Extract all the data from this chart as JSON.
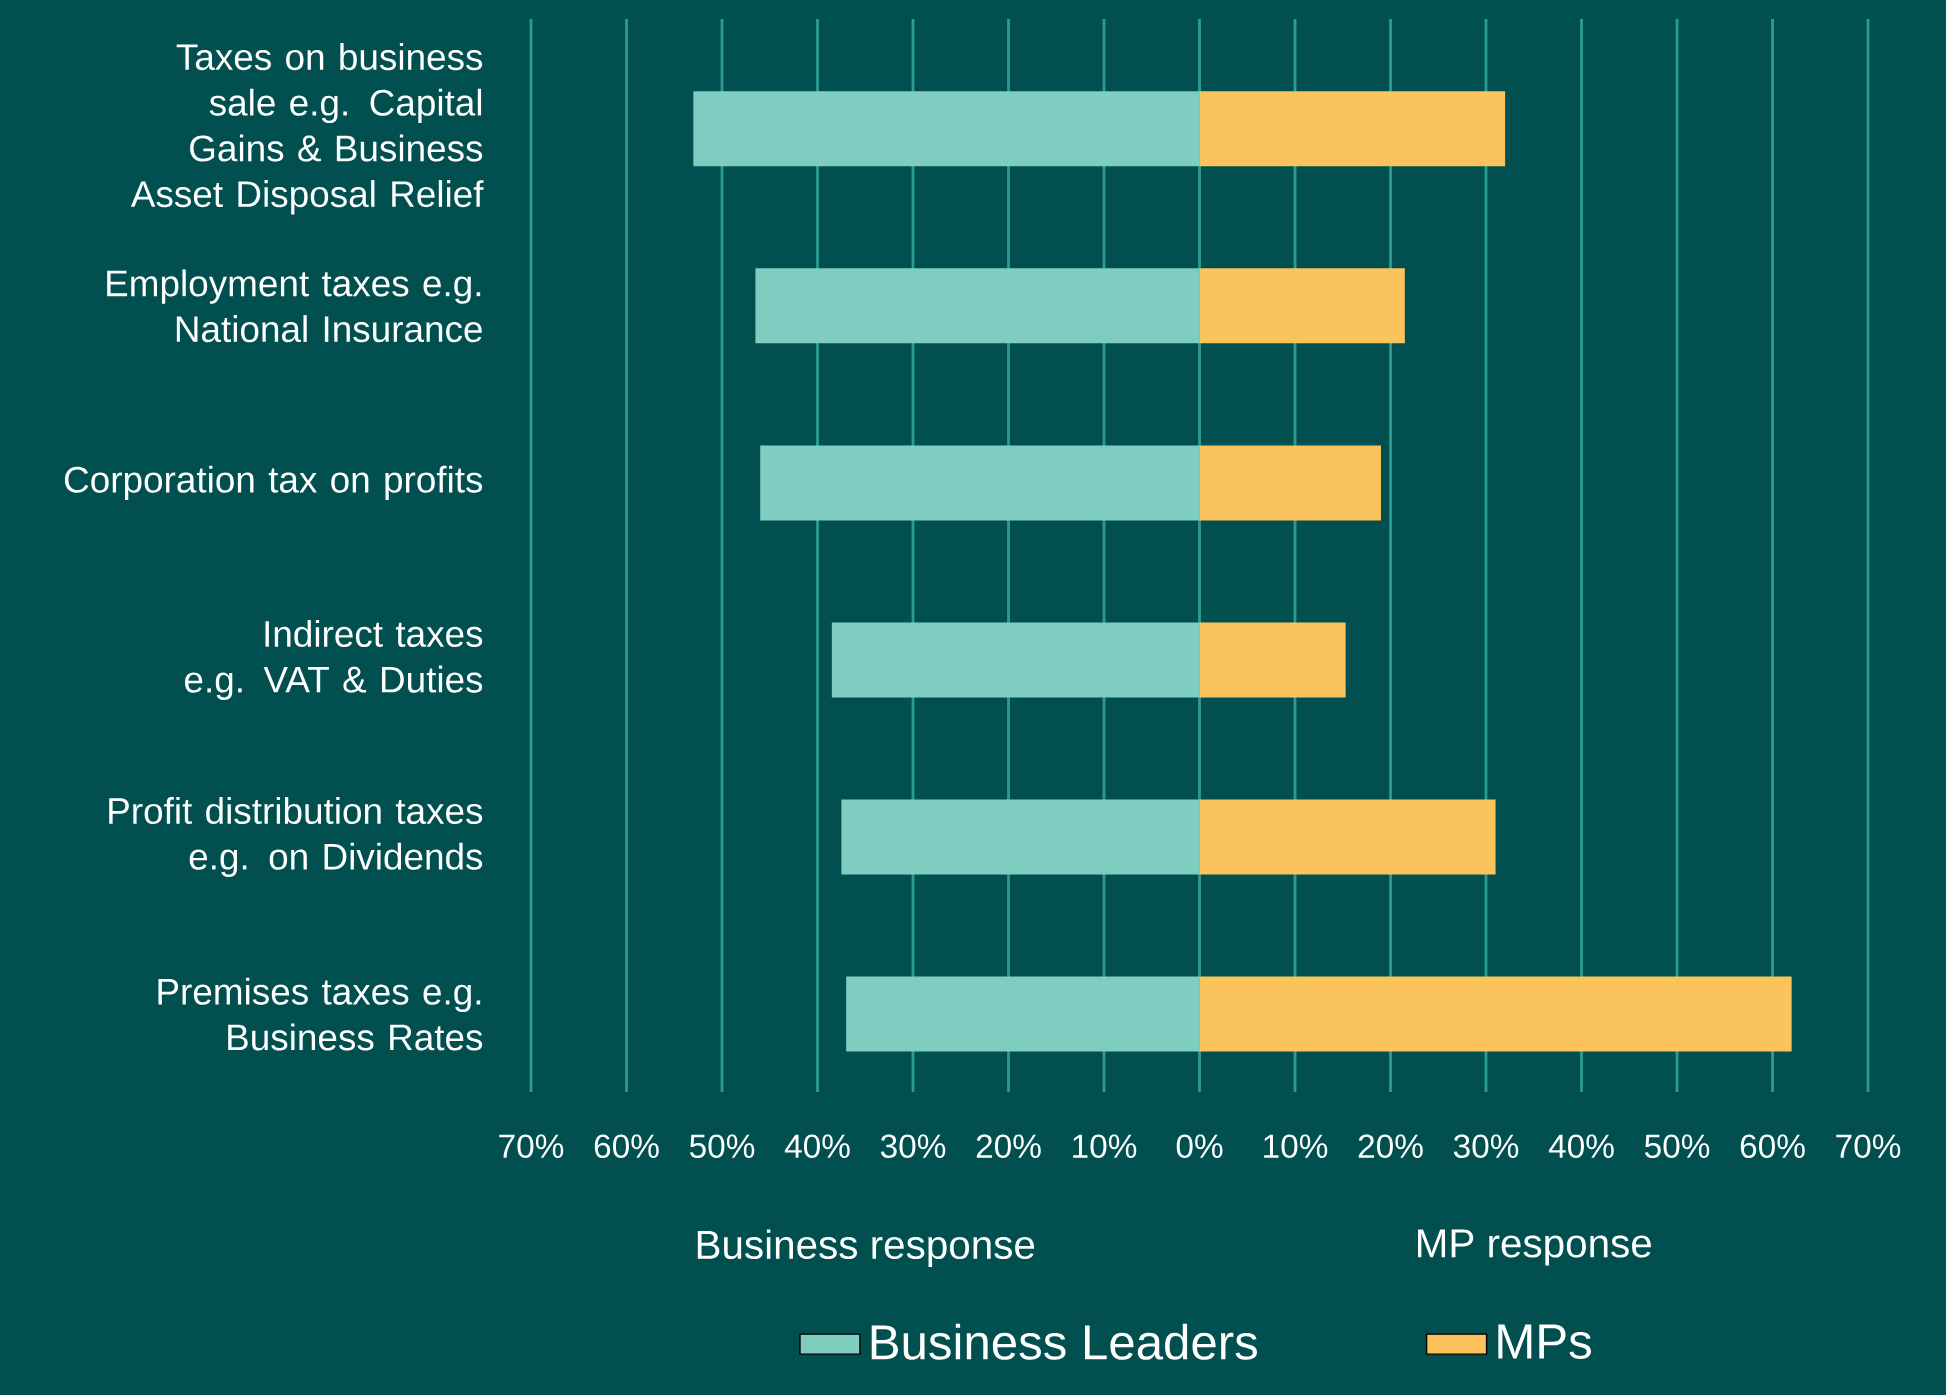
{
  "chart_data": {
    "type": "bar",
    "orientation": "horizontal",
    "categories": [
      "Taxes on business sale e.g. Capital Gains & Business Asset Disposal Relief",
      "Employment taxes e.g. National Insurance",
      "Corporation tax on profits",
      "Indirect taxes e.g. VAT & Duties",
      "Profit distribution taxes e.g. on Dividends",
      "Premises taxes e.g. Business Rates"
    ],
    "series": [
      {
        "name": "Business Leaders",
        "color": "#7ecdc0",
        "values": [
          -53,
          -46.5,
          -46,
          -38.5,
          -37.5,
          -37
        ]
      },
      {
        "name": "MPs",
        "color": "#fbc35c",
        "values": [
          32,
          21.5,
          19,
          15.3,
          31,
          62
        ]
      }
    ],
    "xlim": [
      -70,
      70
    ],
    "xticks": [
      {
        "value": -70,
        "label": "70%"
      },
      {
        "value": -60,
        "label": "60%"
      },
      {
        "value": -50,
        "label": "50%"
      },
      {
        "value": -40,
        "label": "40%"
      },
      {
        "value": -30,
        "label": "30%"
      },
      {
        "value": -20,
        "label": "20%"
      },
      {
        "value": -10,
        "label": "10%"
      },
      {
        "value": 0,
        "label": "0%"
      },
      {
        "value": 10,
        "label": "10%"
      },
      {
        "value": 20,
        "label": "20%"
      },
      {
        "value": 30,
        "label": "30%"
      },
      {
        "value": 40,
        "label": "40%"
      },
      {
        "value": 50,
        "label": "50%"
      },
      {
        "value": 60,
        "label": "60%"
      },
      {
        "value": 70,
        "label": "70%"
      }
    ],
    "annotations": [
      "Business response",
      "MP response"
    ],
    "stacked": true,
    "grid": "x",
    "legend": "bottom"
  }
}
